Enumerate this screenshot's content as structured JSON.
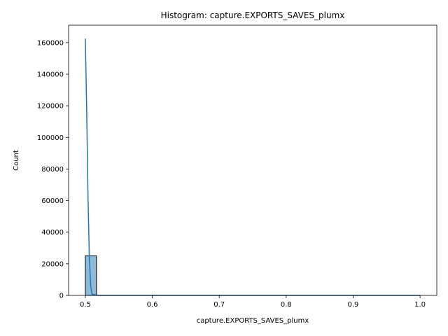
{
  "chart_data": {
    "type": "bar",
    "title": "Histogram: capture.EXPORTS_SAVES_plumx",
    "xlabel": "capture.EXPORTS_SAVES_plumx",
    "ylabel": "Count",
    "xlim": [
      0.475,
      1.025
    ],
    "ylim": [
      0,
      171000
    ],
    "x_ticks": [
      0.5,
      0.6,
      0.7,
      0.8,
      0.9,
      1.0
    ],
    "x_tick_labels": [
      "0.5",
      "0.6",
      "0.7",
      "0.8",
      "0.9",
      "1.0"
    ],
    "y_ticks": [
      0,
      20000,
      40000,
      60000,
      80000,
      100000,
      120000,
      140000,
      160000
    ],
    "y_tick_labels": [
      "0",
      "20000",
      "40000",
      "60000",
      "80000",
      "100000",
      "120000",
      "140000",
      "160000"
    ],
    "bins": [
      {
        "x0": 0.5,
        "x1": 0.5167,
        "count": 25000
      },
      {
        "x0": 0.5167,
        "x1": 0.5333,
        "count": 0
      },
      {
        "x0": 0.5333,
        "x1": 0.55,
        "count": 0
      },
      {
        "x0": 0.55,
        "x1": 0.5667,
        "count": 0
      },
      {
        "x0": 0.5667,
        "x1": 0.5833,
        "count": 0
      },
      {
        "x0": 0.5833,
        "x1": 0.6,
        "count": 0
      },
      {
        "x0": 0.6,
        "x1": 0.6167,
        "count": 0
      },
      {
        "x0": 0.6167,
        "x1": 0.6333,
        "count": 0
      },
      {
        "x0": 0.6333,
        "x1": 0.65,
        "count": 0
      },
      {
        "x0": 0.65,
        "x1": 0.6667,
        "count": 0
      },
      {
        "x0": 0.6667,
        "x1": 0.6833,
        "count": 0
      },
      {
        "x0": 0.6833,
        "x1": 0.7,
        "count": 0
      },
      {
        "x0": 0.7,
        "x1": 0.7167,
        "count": 0
      },
      {
        "x0": 0.7167,
        "x1": 0.7333,
        "count": 0
      },
      {
        "x0": 0.7333,
        "x1": 0.75,
        "count": 0
      },
      {
        "x0": 0.75,
        "x1": 0.7667,
        "count": 0
      },
      {
        "x0": 0.7667,
        "x1": 0.7833,
        "count": 0
      },
      {
        "x0": 0.7833,
        "x1": 0.8,
        "count": 0
      },
      {
        "x0": 0.8,
        "x1": 0.8167,
        "count": 0
      },
      {
        "x0": 0.8167,
        "x1": 0.8333,
        "count": 0
      },
      {
        "x0": 0.8333,
        "x1": 0.85,
        "count": 0
      },
      {
        "x0": 0.85,
        "x1": 0.8667,
        "count": 0
      },
      {
        "x0": 0.8667,
        "x1": 0.8833,
        "count": 0
      },
      {
        "x0": 0.8833,
        "x1": 0.9,
        "count": 0
      },
      {
        "x0": 0.9,
        "x1": 0.9167,
        "count": 0
      },
      {
        "x0": 0.9167,
        "x1": 0.9333,
        "count": 0
      },
      {
        "x0": 0.9333,
        "x1": 0.95,
        "count": 0
      },
      {
        "x0": 0.95,
        "x1": 0.9667,
        "count": 0
      },
      {
        "x0": 0.9667,
        "x1": 0.9833,
        "count": 0
      },
      {
        "x0": 0.9833,
        "x1": 1.0,
        "count": 0
      }
    ],
    "kde": {
      "x": [
        0.5,
        0.502,
        0.504,
        0.506,
        0.508,
        0.51,
        0.52,
        0.55,
        0.6,
        0.7,
        0.8,
        0.9,
        1.0
      ],
      "y": [
        162500,
        118000,
        62000,
        24000,
        6000,
        800,
        0,
        0,
        0,
        0,
        0,
        0,
        0
      ]
    },
    "grid": false,
    "legend": "none",
    "colors": {
      "bar_fill": "#8ebad9",
      "bar_edge": "#000000",
      "kde_line": "#1f77b4"
    }
  }
}
